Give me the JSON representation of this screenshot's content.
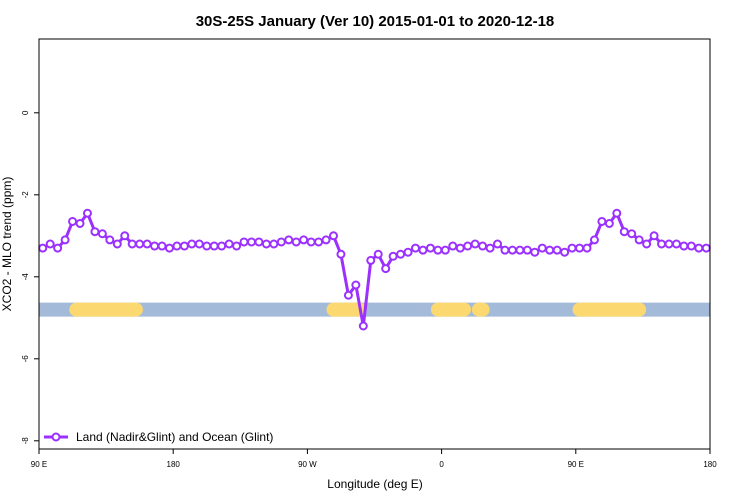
{
  "chart_data": {
    "type": "line",
    "title": "30S-25S January (Ver 10)   2015-01-01 to 2020-12-18",
    "xlabel": "Longitude (deg E)",
    "ylabel": "XCO2 - MLO trend (ppm)",
    "xlim": [
      90,
      450
    ],
    "ylim": [
      -8.2,
      1.8
    ],
    "x_ticks": [
      {
        "value": 90,
        "label": "90 E"
      },
      {
        "value": 162,
        "label": "180"
      },
      {
        "value": 234,
        "label": "90 W"
      },
      {
        "value": 306,
        "label": "0"
      },
      {
        "value": 378,
        "label": "90 E"
      },
      {
        "value": 450,
        "label": "180"
      }
    ],
    "y_ticks": [
      {
        "value": 0,
        "label": "0"
      },
      {
        "value": -2,
        "label": "-2"
      },
      {
        "value": -4,
        "label": "-4"
      },
      {
        "value": -6,
        "label": "-6"
      },
      {
        "value": -8,
        "label": "-8"
      }
    ],
    "legend": {
      "position": "bottom-left",
      "label": "Land (Nadir&Glint) and Ocean (Glint)"
    },
    "series": [
      {
        "name": "Land (Nadir&Glint) and Ocean (Glint)",
        "color": "#9b30ff",
        "x": [
          92,
          96,
          100,
          104,
          108,
          112,
          116,
          120,
          124,
          128,
          132,
          136,
          140,
          144,
          148,
          152,
          156,
          160,
          164,
          168,
          172,
          176,
          180,
          184,
          188,
          192,
          196,
          200,
          204,
          208,
          212,
          216,
          220,
          224,
          228,
          232,
          236,
          240,
          244,
          248,
          252,
          256,
          260,
          264,
          268,
          272,
          276,
          280,
          284,
          288,
          292,
          296,
          300,
          304,
          308,
          312,
          316,
          320,
          324,
          328,
          332,
          336,
          340,
          344,
          348,
          352,
          356,
          360,
          364,
          368,
          372,
          376,
          380,
          384,
          388,
          392,
          396,
          400,
          404,
          408,
          412,
          416,
          420,
          424,
          428,
          432,
          436,
          440,
          444,
          448
        ],
        "y": [
          -3.3,
          -3.2,
          -3.3,
          -3.1,
          -2.65,
          -2.7,
          -2.45,
          -2.9,
          -2.95,
          -3.1,
          -3.2,
          -3.0,
          -3.2,
          -3.2,
          -3.2,
          -3.25,
          -3.25,
          -3.3,
          -3.25,
          -3.25,
          -3.2,
          -3.2,
          -3.25,
          -3.25,
          -3.25,
          -3.2,
          -3.25,
          -3.15,
          -3.15,
          -3.15,
          -3.2,
          -3.2,
          -3.15,
          -3.1,
          -3.15,
          -3.1,
          -3.15,
          -3.15,
          -3.1,
          -3.0,
          -3.45,
          -4.45,
          -4.2,
          -5.2,
          -3.6,
          -3.45,
          -3.8,
          -3.5,
          -3.45,
          -3.4,
          -3.3,
          -3.35,
          -3.3,
          -3.35,
          -3.35,
          -3.25,
          -3.3,
          -3.25,
          -3.2,
          -3.25,
          -3.3,
          -3.2,
          -3.35,
          -3.35,
          -3.35,
          -3.35,
          -3.4,
          -3.3,
          -3.35,
          -3.35,
          -3.4,
          -3.3,
          -3.3,
          -3.3,
          -3.1,
          -2.65,
          -2.7,
          -2.45,
          -2.9,
          -2.95,
          -3.1,
          -3.2,
          -3.0,
          -3.2,
          -3.2,
          -3.2,
          -3.25,
          -3.25,
          -3.3,
          -3.3
        ]
      }
    ],
    "surface_band": {
      "y": -4.8,
      "ocean_color": "#a4bad9",
      "land_color": "#fcd870",
      "land_segments": [
        [
          110,
          142
        ],
        [
          248,
          262
        ],
        [
          304,
          318
        ],
        [
          326,
          328
        ],
        [
          380,
          412
        ]
      ]
    }
  }
}
